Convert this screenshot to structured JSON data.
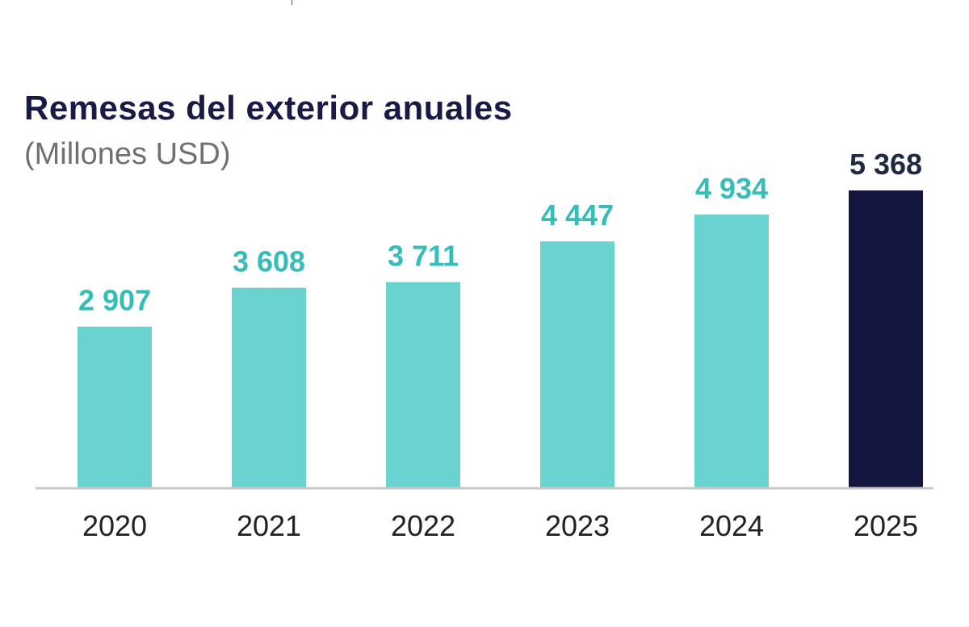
{
  "chart_data": {
    "type": "bar",
    "title": "Remesas del exterior anuales",
    "subtitle": "(Millones USD)",
    "categories": [
      "2020",
      "2021",
      "2022",
      "2023",
      "2024",
      "2025"
    ],
    "values": [
      2907,
      3608,
      3711,
      4447,
      4934,
      5368
    ],
    "value_labels": [
      "2 907",
      "3 608",
      "3 711",
      "4 447",
      "4 934",
      "5 368"
    ],
    "xlabel": "",
    "ylabel": "",
    "ylim": [
      0,
      5368
    ],
    "grid": false,
    "legend": "none",
    "colors": {
      "bar": "#6ad3cf",
      "highlight_bar": "#14163f",
      "bar_label": "#36bdb8",
      "highlight_label": "#1f2940",
      "axis": "#c8c8c8"
    },
    "highlight_index": 5
  }
}
